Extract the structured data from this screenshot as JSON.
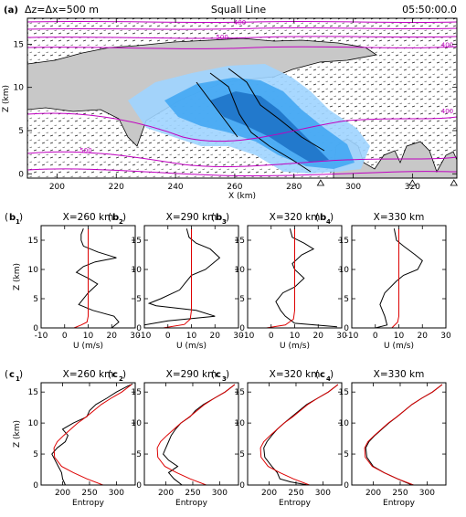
{
  "chart_data": [
    {
      "id": "a",
      "type": "heatmap",
      "panel_label": "(a)",
      "title": "Squall Line",
      "left_note": "Δz=Δx=500 m",
      "time_label": "05:50:00.0",
      "xlabel": "X (km)",
      "ylabel": "Z (km)",
      "xlim": [
        190,
        335
      ],
      "ylim": [
        -0.5,
        18
      ],
      "xticks": [
        200,
        220,
        240,
        260,
        280,
        300,
        320
      ],
      "yticks": [
        0,
        5,
        10,
        15
      ],
      "theta_contour_labels": [
        {
          "text": "400",
          "x": 264,
          "y": 17.6
        },
        {
          "text": "500",
          "x": 258,
          "y": 15.9
        },
        {
          "text": "400",
          "x": 334,
          "y": 15.0
        },
        {
          "text": "400",
          "x": 334,
          "y": 7.3
        },
        {
          "text": "500",
          "x": 212,
          "y": 2.8
        }
      ],
      "markers_x": [
        289,
        320,
        334
      ],
      "colors": {
        "cloud": "#c8c8c8",
        "rain_light": "#9fd4ff",
        "rain_mid": "#43a7f3",
        "rain_dark": "#1e73c8",
        "contour": "#c000c0"
      }
    },
    {
      "id": "b1",
      "type": "line",
      "panel_label": "b",
      "sub": "1",
      "title": "X=260 km",
      "xlabel": "U (m/s)",
      "ylabel": "Z (km)",
      "xlim": [
        -10,
        30
      ],
      "ylim": [
        0,
        17.5
      ],
      "xticks": [
        -10,
        0,
        10,
        20,
        30
      ],
      "yticks": [
        0,
        5,
        10,
        15
      ],
      "series": [
        {
          "color": "#000000",
          "points": [
            [
              20,
              0
            ],
            [
              23,
              1
            ],
            [
              21,
              2
            ],
            [
              12,
              3
            ],
            [
              6,
              4
            ],
            [
              10,
              6
            ],
            [
              14,
              7.5
            ],
            [
              10,
              8.5
            ],
            [
              5,
              9.5
            ],
            [
              8,
              10.5
            ],
            [
              13,
              11.3
            ],
            [
              22,
              12
            ],
            [
              14,
              13
            ],
            [
              8,
              14
            ],
            [
              7,
              15
            ],
            [
              7,
              16
            ],
            [
              8,
              17
            ]
          ]
        },
        {
          "color": "#dd0000",
          "points": [
            [
              4,
              0
            ],
            [
              7,
              0.5
            ],
            [
              9.5,
              1
            ],
            [
              10,
              2
            ],
            [
              10,
              17
            ]
          ]
        }
      ]
    },
    {
      "id": "b2",
      "type": "line",
      "panel_label": "b",
      "sub": "2",
      "title": "X=290 km",
      "xlabel": "U (m/s)",
      "ylabel": "",
      "xlim": [
        -10,
        30
      ],
      "ylim": [
        0,
        17.5
      ],
      "xticks": [
        -10,
        0,
        10,
        20,
        30
      ],
      "yticks": [
        0,
        5,
        10,
        15
      ],
      "series": [
        {
          "color": "#000000",
          "points": [
            [
              -10,
              0.5
            ],
            [
              0,
              1.2
            ],
            [
              20,
              2
            ],
            [
              12,
              3
            ],
            [
              -5,
              3.8
            ],
            [
              -8,
              4.2
            ],
            [
              -3,
              5
            ],
            [
              5,
              6.5
            ],
            [
              8,
              8
            ],
            [
              10,
              9
            ],
            [
              16,
              10
            ],
            [
              22,
              12
            ],
            [
              18,
              13.5
            ],
            [
              12,
              14.5
            ],
            [
              9,
              15.5
            ],
            [
              8,
              17
            ]
          ]
        },
        {
          "color": "#dd0000",
          "points": [
            [
              -2,
              0
            ],
            [
              7,
              0.6
            ],
            [
              9.5,
              1.5
            ],
            [
              10,
              3
            ],
            [
              10,
              17
            ]
          ]
        }
      ]
    },
    {
      "id": "b3",
      "type": "line",
      "panel_label": "b",
      "sub": "3",
      "title": "X=320 km",
      "xlabel": "U (m/s)",
      "ylabel": "",
      "xlim": [
        -10,
        30
      ],
      "ylim": [
        0,
        17.5
      ],
      "xticks": [
        -10,
        0,
        10,
        20,
        30
      ],
      "yticks": [
        0,
        5,
        10,
        15
      ],
      "series": [
        {
          "color": "#000000",
          "points": [
            [
              28,
              0.2
            ],
            [
              10,
              0.8
            ],
            [
              6,
              2
            ],
            [
              4,
              3
            ],
            [
              2,
              4.5
            ],
            [
              5,
              6
            ],
            [
              10,
              7
            ],
            [
              14,
              8.5
            ],
            [
              10,
              10
            ],
            [
              9,
              11
            ],
            [
              13,
              12.5
            ],
            [
              18,
              13.5
            ],
            [
              14,
              14.5
            ],
            [
              9,
              15.5
            ],
            [
              8,
              17
            ]
          ]
        },
        {
          "color": "#dd0000",
          "points": [
            [
              -2,
              0
            ],
            [
              6,
              0.5
            ],
            [
              9.5,
              1.5
            ],
            [
              10,
              3
            ],
            [
              10,
              17
            ]
          ]
        }
      ]
    },
    {
      "id": "b4",
      "type": "line",
      "panel_label": "b",
      "sub": "4",
      "title": "X=330 km",
      "xlabel": "U (m/s)",
      "ylabel": "",
      "xlim": [
        -10,
        30
      ],
      "ylim": [
        0,
        17.5
      ],
      "xticks": [
        -10,
        0,
        10,
        20,
        30
      ],
      "yticks": [
        0,
        5,
        10,
        15
      ],
      "series": [
        {
          "color": "#000000",
          "points": [
            [
              0,
              0
            ],
            [
              5,
              0.5
            ],
            [
              4,
              2
            ],
            [
              2,
              4
            ],
            [
              4,
              6
            ],
            [
              9,
              8
            ],
            [
              12,
              9
            ],
            [
              18,
              10
            ],
            [
              20,
              11.5
            ],
            [
              17,
              12.5
            ],
            [
              12,
              14
            ],
            [
              9,
              15
            ],
            [
              8,
              17
            ]
          ]
        },
        {
          "color": "#dd0000",
          "points": [
            [
              7,
              0
            ],
            [
              9.5,
              1
            ],
            [
              10,
              2
            ],
            [
              10,
              17
            ]
          ]
        }
      ]
    },
    {
      "id": "c1",
      "type": "line",
      "panel_label": "c",
      "sub": "1",
      "title": "X=260 km",
      "xlabel": "Entropy",
      "ylabel": "Z (km)",
      "xlim": [
        160,
        335
      ],
      "ylim": [
        0,
        16.5
      ],
      "xticks": [
        200,
        250,
        300
      ],
      "yticks": [
        0,
        5,
        10,
        15
      ],
      "series": [
        {
          "color": "#000000",
          "points": [
            [
              205,
              0
            ],
            [
              200,
              1
            ],
            [
              198,
              2
            ],
            [
              192,
              3
            ],
            [
              180,
              5
            ],
            [
              190,
              6
            ],
            [
              205,
              7
            ],
            [
              210,
              8
            ],
            [
              200,
              9
            ],
            [
              220,
              10
            ],
            [
              245,
              11
            ],
            [
              250,
              12
            ],
            [
              262,
              13
            ],
            [
              282,
              14
            ],
            [
              300,
              15
            ],
            [
              322,
              16
            ],
            [
              330,
              16.3
            ]
          ]
        },
        {
          "color": "#dd0000",
          "points": [
            [
              275,
              0
            ],
            [
              245,
              1
            ],
            [
              220,
              2
            ],
            [
              198,
              3
            ],
            [
              185,
              4.5
            ],
            [
              184,
              6
            ],
            [
              190,
              7
            ],
            [
              202,
              8
            ],
            [
              215,
              9
            ],
            [
              228,
              10
            ],
            [
              244,
              11
            ],
            [
              258,
              12
            ],
            [
              272,
              13
            ],
            [
              290,
              14
            ],
            [
              310,
              15
            ],
            [
              328,
              16.2
            ]
          ]
        }
      ]
    },
    {
      "id": "c2",
      "type": "line",
      "panel_label": "c",
      "sub": "2",
      "title": "X=290 km",
      "xlabel": "Entropy",
      "ylabel": "",
      "xlim": [
        160,
        335
      ],
      "ylim": [
        0,
        16.5
      ],
      "xticks": [
        200,
        250,
        300
      ],
      "yticks": [
        0,
        5,
        10,
        15
      ],
      "series": [
        {
          "color": "#000000",
          "points": [
            [
              230,
              0
            ],
            [
              215,
              1
            ],
            [
              205,
              2
            ],
            [
              222,
              3
            ],
            [
              205,
              4
            ],
            [
              195,
              5
            ],
            [
              200,
              6
            ],
            [
              205,
              7
            ],
            [
              210,
              8
            ],
            [
              218,
              9
            ],
            [
              228,
              10
            ],
            [
              245,
              11
            ],
            [
              255,
              12
            ],
            [
              270,
              13
            ],
            [
              290,
              14
            ],
            [
              310,
              15
            ],
            [
              328,
              16.2
            ]
          ]
        },
        {
          "color": "#dd0000",
          "points": [
            [
              275,
              0
            ],
            [
              245,
              1
            ],
            [
              220,
              2
            ],
            [
              198,
              3
            ],
            [
              185,
              4.5
            ],
            [
              184,
              6
            ],
            [
              190,
              7
            ],
            [
              202,
              8
            ],
            [
              215,
              9
            ],
            [
              228,
              10
            ],
            [
              244,
              11
            ],
            [
              258,
              12
            ],
            [
              272,
              13
            ],
            [
              290,
              14
            ],
            [
              310,
              15
            ],
            [
              328,
              16.2
            ]
          ]
        }
      ]
    },
    {
      "id": "c3",
      "type": "line",
      "panel_label": "c",
      "sub": "3",
      "title": "X=320 km",
      "xlabel": "Entropy",
      "ylabel": "",
      "xlim": [
        160,
        335
      ],
      "ylim": [
        0,
        16.5
      ],
      "xticks": [
        200,
        250,
        300
      ],
      "yticks": [
        0,
        5,
        10,
        15
      ],
      "series": [
        {
          "color": "#000000",
          "points": [
            [
              272,
              0
            ],
            [
              240,
              0.5
            ],
            [
              220,
              1
            ],
            [
              215,
              2
            ],
            [
              205,
              3
            ],
            [
              192,
              4.5
            ],
            [
              190,
              6
            ],
            [
              196,
              7
            ],
            [
              205,
              8
            ],
            [
              215,
              9
            ],
            [
              228,
              10
            ],
            [
              242,
              11
            ],
            [
              256,
              12
            ],
            [
              270,
              13
            ],
            [
              290,
              14
            ],
            [
              310,
              15
            ],
            [
              328,
              16.2
            ]
          ]
        },
        {
          "color": "#dd0000",
          "points": [
            [
              275,
              0
            ],
            [
              245,
              1
            ],
            [
              220,
              2
            ],
            [
              198,
              3
            ],
            [
              185,
              4.5
            ],
            [
              184,
              6
            ],
            [
              190,
              7
            ],
            [
              202,
              8
            ],
            [
              215,
              9
            ],
            [
              228,
              10
            ],
            [
              244,
              11
            ],
            [
              258,
              12
            ],
            [
              272,
              13
            ],
            [
              290,
              14
            ],
            [
              310,
              15
            ],
            [
              328,
              16.2
            ]
          ]
        }
      ]
    },
    {
      "id": "c4",
      "type": "line",
      "panel_label": "c",
      "sub": "4",
      "title": "X=330 km",
      "xlabel": "Entropy",
      "ylabel": "",
      "xlim": [
        160,
        335
      ],
      "ylim": [
        0,
        16.5
      ],
      "xticks": [
        200,
        250,
        300
      ],
      "yticks": [
        0,
        5,
        10,
        15
      ],
      "series": [
        {
          "color": "#000000",
          "points": [
            [
              272,
              0
            ],
            [
              245,
              1
            ],
            [
              220,
              2
            ],
            [
              200,
              3
            ],
            [
              188,
              4.5
            ],
            [
              186,
              6
            ],
            [
              192,
              7
            ],
            [
              203,
              8
            ],
            [
              216,
              9
            ],
            [
              229,
              10
            ],
            [
              244,
              11
            ],
            [
              258,
              12
            ],
            [
              272,
              13
            ],
            [
              290,
              14
            ],
            [
              310,
              15
            ],
            [
              328,
              16.2
            ]
          ]
        },
        {
          "color": "#dd0000",
          "points": [
            [
              275,
              0
            ],
            [
              245,
              1
            ],
            [
              220,
              2
            ],
            [
              198,
              3
            ],
            [
              185,
              4.5
            ],
            [
              184,
              6
            ],
            [
              190,
              7
            ],
            [
              202,
              8
            ],
            [
              215,
              9
            ],
            [
              228,
              10
            ],
            [
              244,
              11
            ],
            [
              258,
              12
            ],
            [
              272,
              13
            ],
            [
              290,
              14
            ],
            [
              310,
              15
            ],
            [
              328,
              16.2
            ]
          ]
        }
      ]
    }
  ]
}
